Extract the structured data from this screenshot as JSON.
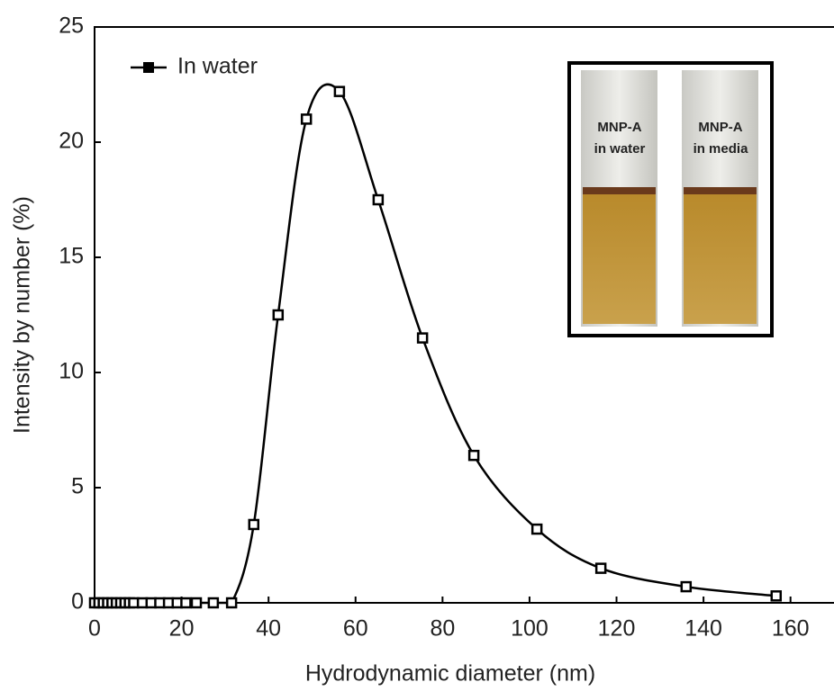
{
  "chart_data": {
    "type": "line",
    "xlabel": "Hydrodynamic diameter (nm)",
    "ylabel": "Intensity by number (%)",
    "x": [
      0,
      1,
      2,
      3,
      4,
      5,
      6,
      7,
      8,
      9,
      11,
      13,
      15,
      17,
      19,
      21,
      23.4,
      27.3,
      31.5,
      36.6,
      42.2,
      48.7,
      56.3,
      65.2,
      75.4,
      87.2,
      101.7,
      116.4,
      136,
      156.7
    ],
    "series": [
      {
        "name": "In water",
        "color": "#000000",
        "values": [
          0,
          0,
          0,
          0,
          0,
          0,
          0,
          0,
          0,
          0,
          0,
          0,
          0,
          0,
          0,
          0,
          0,
          0,
          0,
          3.4,
          12.5,
          21.0,
          22.2,
          17.5,
          11.5,
          6.4,
          3.2,
          1.5,
          0.7,
          0.3
        ]
      }
    ],
    "xlim": [
      0,
      170
    ],
    "xticks": [
      0,
      20,
      40,
      60,
      80,
      100,
      120,
      140,
      160
    ],
    "ylim": [
      0,
      25
    ],
    "yticks": [
      0,
      5,
      10,
      15,
      20,
      25
    ],
    "legend": "upper left",
    "inset_labels": [
      [
        "MNP-A",
        "in water"
      ],
      [
        "MNP-A",
        "in media"
      ]
    ]
  }
}
